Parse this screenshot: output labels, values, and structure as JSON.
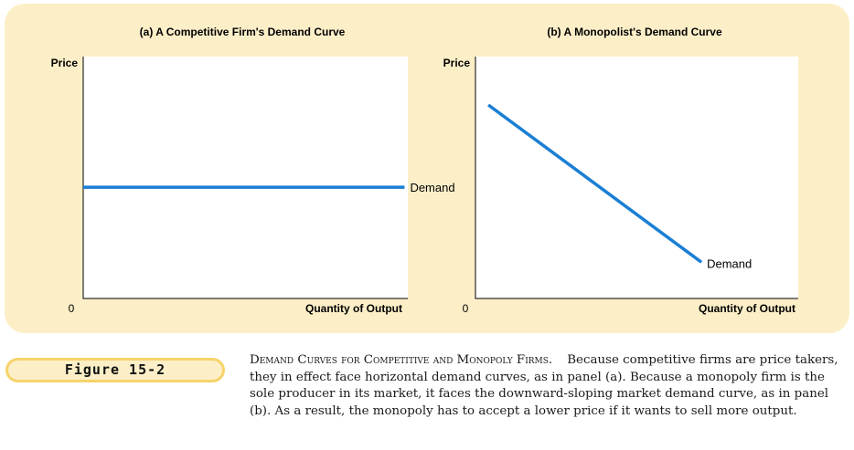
{
  "chart_data": [
    {
      "type": "line",
      "title": "(a) A Competitive Firm's Demand Curve",
      "xlabel": "Quantity of Output",
      "ylabel": "Price",
      "origin_label": "0",
      "xlim": [
        0,
        10
      ],
      "ylim": [
        0,
        10
      ],
      "series": [
        {
          "name": "Demand",
          "x": [
            0,
            9.9
          ],
          "y": [
            4.6,
            4.6
          ]
        }
      ]
    },
    {
      "type": "line",
      "title": "(b) A Monopolist's Demand Curve",
      "xlabel": "Quantity of Output",
      "ylabel": "Price",
      "origin_label": "0",
      "xlim": [
        0,
        10
      ],
      "ylim": [
        0,
        10
      ],
      "series": [
        {
          "name": "Demand",
          "x": [
            0.4,
            7.0
          ],
          "y": [
            8.0,
            1.5
          ]
        }
      ]
    }
  ],
  "colors": {
    "panel_bg": "#fcefc8",
    "curve": "#1a7fd4",
    "badge_border": "#f6d36a"
  },
  "figure": {
    "label": "Figure 15-2",
    "caption_title": "Demand Curves for Competitive and Monopoly Firms.",
    "caption_text": "Because competitive firms are price takers, they in effect face horizontal demand curves, as in panel (a). Because a monopoly firm is the sole producer in its market, it faces the downward-sloping market demand curve, as in panel (b). As a result, the monopoly has to accept a lower price if it wants to sell more output."
  }
}
